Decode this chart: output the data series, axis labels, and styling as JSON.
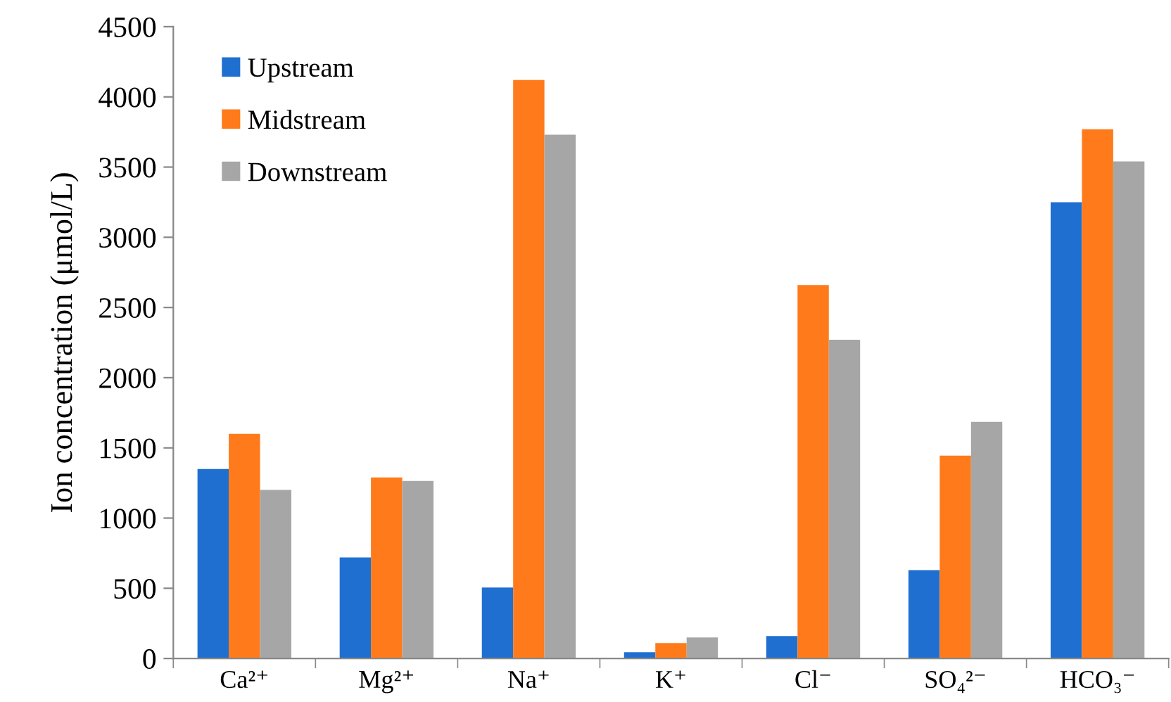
{
  "chart_data": {
    "type": "bar",
    "ylabel": "Ion concentration (μmol/L)",
    "categories": [
      "Ca²⁺",
      "Mg²⁺",
      "Na⁺",
      "K⁺",
      "Cl⁻",
      "SO₄²⁻",
      "HCO₃⁻"
    ],
    "series": [
      {
        "name": "Upstream",
        "color": "#1f6fd0",
        "values": [
          1350,
          720,
          505,
          45,
          160,
          630,
          3250
        ]
      },
      {
        "name": "Midstream",
        "color": "#ff7a1a",
        "values": [
          1600,
          1290,
          4120,
          110,
          2660,
          1445,
          3770
        ]
      },
      {
        "name": "Downstream",
        "color": "#a6a6a6",
        "values": [
          1200,
          1265,
          3730,
          150,
          2270,
          1685,
          3540
        ]
      }
    ],
    "ylim": [
      0,
      4500
    ],
    "yticks": [
      0,
      500,
      1000,
      1500,
      2000,
      2500,
      3000,
      3500,
      4000,
      4500
    ],
    "grid": false,
    "legend": "top left"
  }
}
